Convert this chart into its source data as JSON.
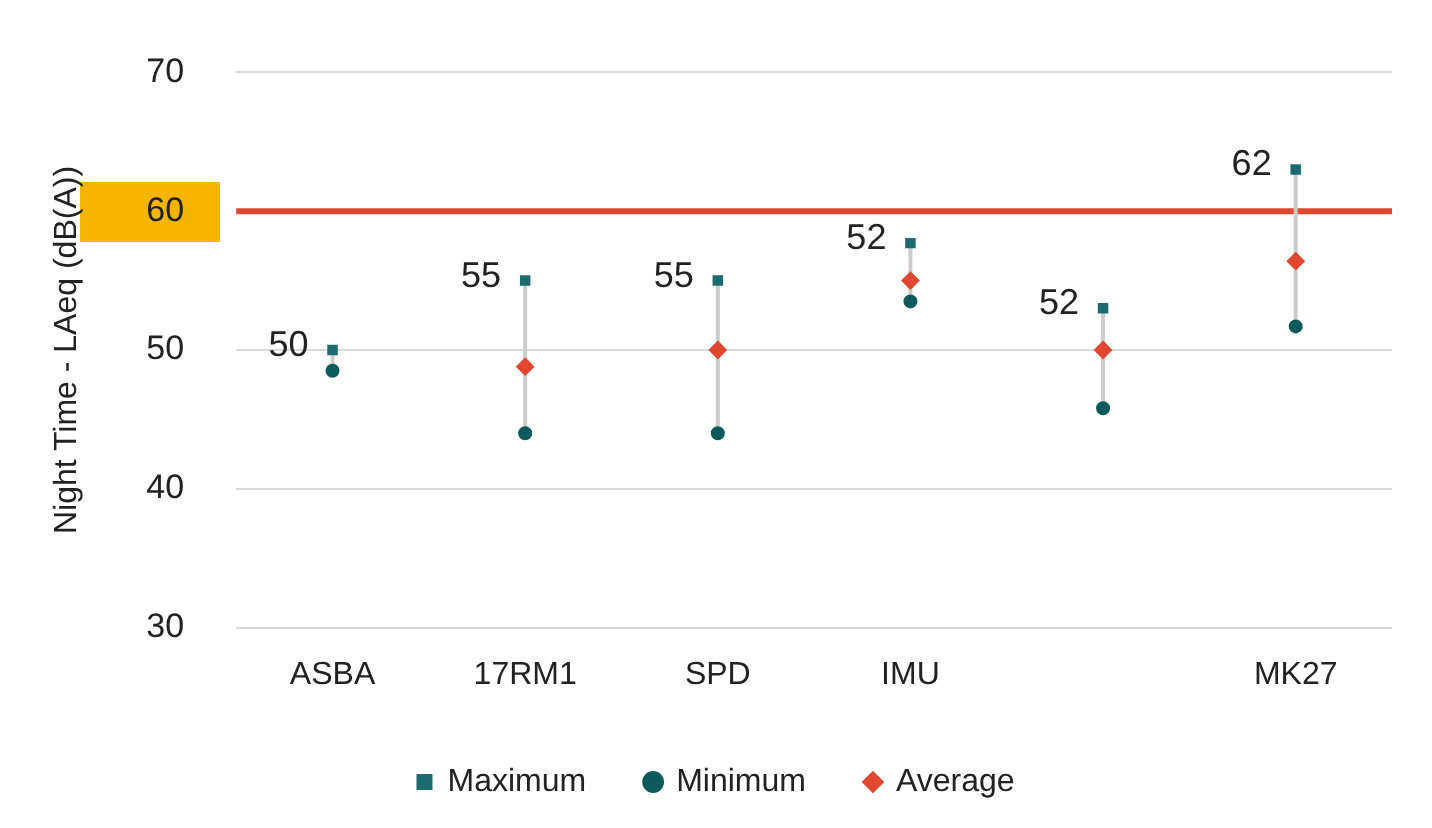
{
  "chart_data": {
    "type": "scatter",
    "ylabel": "Night Time - LAeq (dB(A))",
    "categories": [
      "ASBA",
      "17RM1",
      "SPD",
      "IMU",
      null,
      "MK27"
    ],
    "series": [
      {
        "name": "Maximum",
        "color": "#1b6b70",
        "marker": "square",
        "values": [
          50.0,
          55.0,
          55.0,
          57.7,
          53.0,
          63.0
        ]
      },
      {
        "name": "Minimum",
        "color": "#0d5a5e",
        "marker": "circle",
        "values": [
          48.5,
          44.0,
          44.0,
          53.5,
          45.8,
          51.7
        ]
      },
      {
        "name": "Average",
        "color": "#e0472f",
        "marker": "diamond",
        "values": [
          null,
          48.8,
          50.0,
          55.0,
          50.0,
          56.4
        ]
      }
    ],
    "ylim": [
      30,
      70
    ],
    "yticks": [
      30,
      40,
      50,
      60,
      70
    ],
    "grid": "y",
    "legend": "bottom",
    "ref_lines": [
      {
        "axis": "y",
        "value": 60,
        "color": "#e0472f"
      }
    ],
    "annotations": [
      "50",
      "55",
      "55",
      "52",
      "52",
      "62"
    ]
  }
}
